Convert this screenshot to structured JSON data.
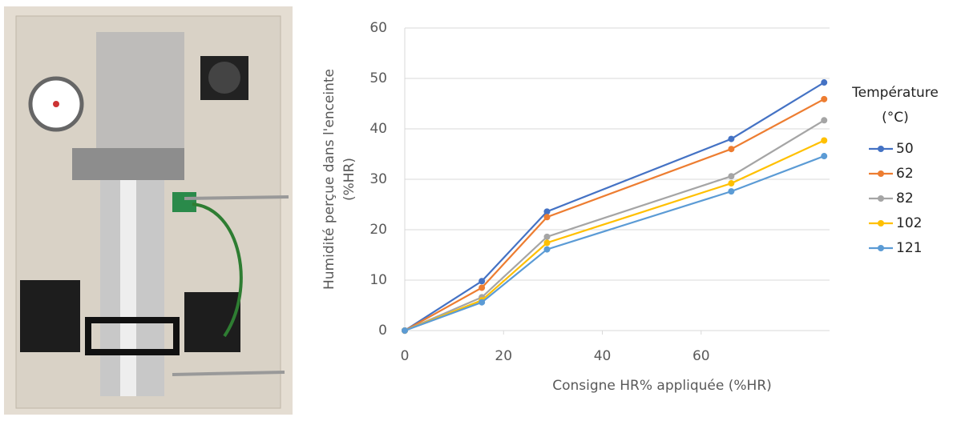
{
  "chart_data": {
    "type": "line",
    "y_label": [
      "Humidité perçue dans l'enceinte",
      "(%HR)"
    ],
    "x_label": "Consigne HR% appliquée (%HR)",
    "legend_title": [
      "Température",
      "(°C)"
    ],
    "x": [
      0,
      15.6,
      28.8,
      66.1,
      84.9
    ],
    "series": [
      {
        "name": "50",
        "color": "#4472c4",
        "values": [
          0,
          9.8,
          23.6,
          38,
          49.2
        ]
      },
      {
        "name": "62",
        "color": "#ed7d31",
        "values": [
          0,
          8.5,
          22.5,
          36,
          45.9
        ]
      },
      {
        "name": "82",
        "color": "#a5a5a5",
        "values": [
          0,
          6.6,
          18.6,
          30.6,
          41.7
        ]
      },
      {
        "name": "102",
        "color": "#ffc000",
        "values": [
          0,
          6.0,
          17.4,
          29.2,
          37.7
        ]
      },
      {
        "name": "121",
        "color": "#5b9bd5",
        "values": [
          0,
          5.6,
          16.1,
          27.6,
          34.6
        ]
      }
    ],
    "xlim": [
      0,
      86
    ],
    "xticks": [
      0,
      20,
      40,
      60
    ],
    "ylim": [
      0,
      60
    ],
    "yticks": [
      0,
      10,
      20,
      30,
      40,
      50,
      60
    ],
    "grid": true,
    "legend": "right"
  }
}
